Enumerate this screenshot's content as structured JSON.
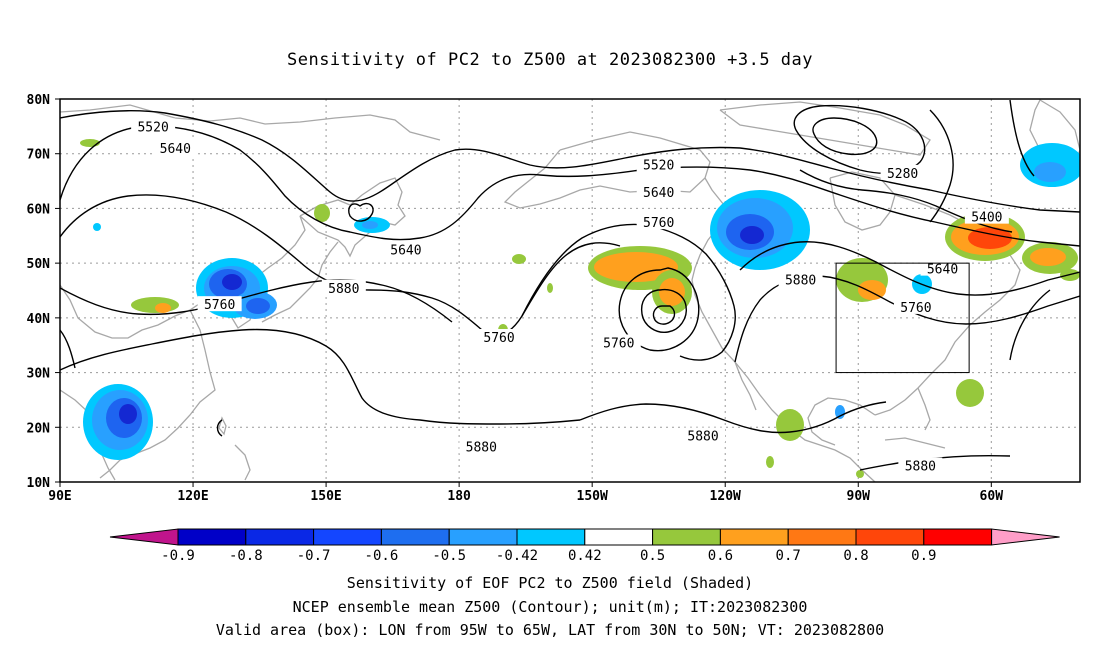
{
  "title": "Sensitivity of PC2 to Z500 at 2023082300 +3.5 day",
  "lat_labels": [
    {
      "lat": 80,
      "text": "80N"
    },
    {
      "lat": 70,
      "text": "70N"
    },
    {
      "lat": 60,
      "text": "60N"
    },
    {
      "lat": 50,
      "text": "50N"
    },
    {
      "lat": 40,
      "text": "40N"
    },
    {
      "lat": 30,
      "text": "30N"
    },
    {
      "lat": 20,
      "text": "20N"
    },
    {
      "lat": 10,
      "text": "10N"
    }
  ],
  "lon_labels": [
    {
      "lon": 90,
      "text": "90E"
    },
    {
      "lon": 120,
      "text": "120E"
    },
    {
      "lon": 150,
      "text": "150E"
    },
    {
      "lon": 180,
      "text": "180"
    },
    {
      "lon": 210,
      "text": "150W"
    },
    {
      "lon": 240,
      "text": "120W"
    },
    {
      "lon": 270,
      "text": "90W"
    },
    {
      "lon": 300,
      "text": "60W"
    }
  ],
  "valid_box": {
    "lon_min": 265,
    "lon_max": 295,
    "lat_min": 30,
    "lat_max": 50
  },
  "contour_labels": [
    {
      "text": "5520",
      "lon": 111,
      "lat": 75
    },
    {
      "text": "5640",
      "lon": 116,
      "lat": 71
    },
    {
      "text": "5520",
      "lon": 225,
      "lat": 68
    },
    {
      "text": "5280",
      "lon": 280,
      "lat": 66.5
    },
    {
      "text": "5640",
      "lon": 225,
      "lat": 63
    },
    {
      "text": "5400",
      "lon": 299,
      "lat": 58.5
    },
    {
      "text": "5760",
      "lon": 225,
      "lat": 57.5
    },
    {
      "text": "5640",
      "lon": 168,
      "lat": 52.5
    },
    {
      "text": "5640",
      "lon": 289,
      "lat": 49
    },
    {
      "text": "5880",
      "lon": 154,
      "lat": 45.5
    },
    {
      "text": "5880",
      "lon": 257,
      "lat": 47
    },
    {
      "text": "5760",
      "lon": 126,
      "lat": 42.5
    },
    {
      "text": "5760",
      "lon": 283,
      "lat": 42
    },
    {
      "text": "5760",
      "lon": 189,
      "lat": 36.5
    },
    {
      "text": "5760",
      "lon": 216,
      "lat": 35.5
    },
    {
      "text": "5880",
      "lon": 185,
      "lat": 16.5
    },
    {
      "text": "5880",
      "lon": 235,
      "lat": 18.5
    },
    {
      "text": "5880",
      "lon": 284,
      "lat": 13
    }
  ],
  "colorbar": {
    "colors": [
      "#c0148c",
      "#0000c8",
      "#0a28e6",
      "#1446ff",
      "#1e6ef0",
      "#28a0ff",
      "#00c8ff",
      "#ffffff",
      "#96c83c",
      "#ffa01e",
      "#ff7814",
      "#ff460a",
      "#ff0000",
      "#ff9ec8"
    ],
    "labels": [
      "-0.9",
      "-0.8",
      "-0.7",
      "-0.6",
      "-0.5",
      "-0.42",
      "0.42",
      "0.5",
      "0.6",
      "0.7",
      "0.8",
      "0.9"
    ]
  },
  "shading_colors": {
    "darkblue": "#1428d2",
    "blue": "#1e64f0",
    "lightblue": "#28a0ff",
    "cyan": "#00c8ff",
    "green": "#96c83c",
    "orange": "#ffa01e",
    "red": "#ff460a"
  },
  "captions": {
    "line1": "Sensitivity of EOF PC2 to Z500 field (Shaded)",
    "line2": "NCEP ensemble mean Z500 (Contour); unit(m); IT:2023082300",
    "line3": "Valid area (box): LON from 95W to 65W, LAT from 30N to 50N; VT: 2023082800"
  }
}
